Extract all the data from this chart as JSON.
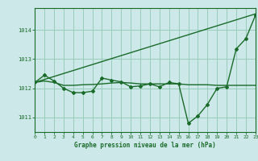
{
  "bg_color": "#cce8e8",
  "grid_color": "#99ccbb",
  "line_color": "#1a6b2a",
  "title": "Graphe pression niveau de la mer (hPa)",
  "xlim": [
    0,
    23
  ],
  "ylim": [
    1010.5,
    1014.75
  ],
  "yticks": [
    1011,
    1012,
    1013,
    1014
  ],
  "xticks": [
    0,
    1,
    2,
    3,
    4,
    5,
    6,
    7,
    8,
    9,
    10,
    11,
    12,
    13,
    14,
    15,
    16,
    17,
    18,
    19,
    20,
    21,
    22,
    23
  ],
  "series1_x": [
    0,
    1,
    2,
    3,
    4,
    5,
    6,
    7,
    8,
    9,
    10,
    11,
    12,
    13,
    14,
    15,
    16,
    17,
    18,
    19,
    20,
    21,
    22,
    23
  ],
  "series1_y": [
    1012.2,
    1012.25,
    1012.2,
    1012.1,
    1012.1,
    1012.12,
    1012.13,
    1012.15,
    1012.18,
    1012.2,
    1012.18,
    1012.15,
    1012.15,
    1012.15,
    1012.15,
    1012.15,
    1012.12,
    1012.12,
    1012.12,
    1012.1,
    1012.1,
    1012.1,
    1012.1,
    1012.1
  ],
  "series2_x": [
    0,
    1,
    2,
    3,
    4,
    5,
    6,
    7,
    8,
    9,
    10,
    11,
    12,
    13,
    14,
    15,
    16,
    17,
    18,
    19,
    20,
    21,
    22,
    23
  ],
  "series2_y": [
    1012.2,
    1012.45,
    1012.25,
    1012.0,
    1011.85,
    1011.85,
    1011.9,
    1012.35,
    1012.28,
    1012.22,
    1012.05,
    1012.08,
    1012.15,
    1012.05,
    1012.2,
    1012.15,
    1010.8,
    1011.05,
    1011.45,
    1012.0,
    1012.05,
    1013.35,
    1013.7,
    1014.5
  ],
  "series3_x": [
    0,
    23
  ],
  "series3_y": [
    1012.2,
    1014.55
  ]
}
